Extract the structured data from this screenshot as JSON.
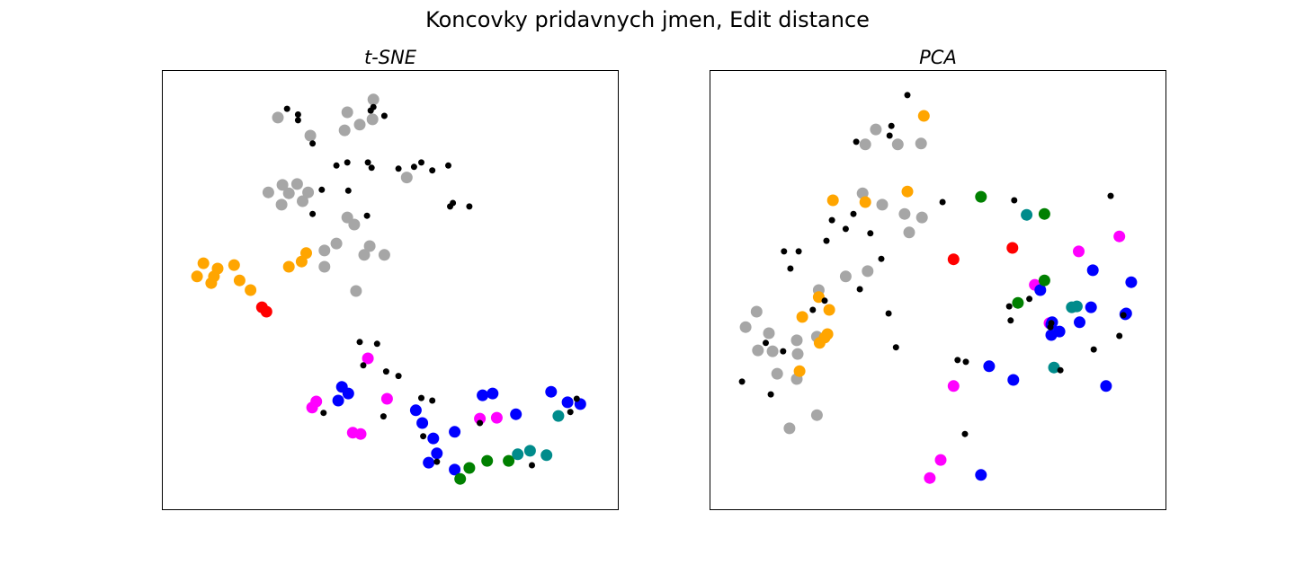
{
  "figure_title": "Koncovky pridavnych jmen, Edit distance",
  "colors": {
    "black": "#000000",
    "gray": "#a6a6a6",
    "orange": "#ffa500",
    "red": "#ff0000",
    "magenta": "#ff00ff",
    "blue": "#0000ff",
    "green": "#008000",
    "teal": "#008b8b"
  },
  "chart_data": [
    {
      "type": "scatter",
      "title": "t-SNE",
      "xlabel": "",
      "ylabel": "",
      "axes_ticks": "none",
      "grid": false,
      "legend": "none",
      "xlim": [
        0,
        100
      ],
      "ylim": [
        0,
        100
      ],
      "series": [
        {
          "color": "black",
          "marker_size": "small",
          "points": [
            [
              27.4,
              91.2
            ],
            [
              29.8,
              89.9
            ],
            [
              29.8,
              88.6
            ],
            [
              33.0,
              83.3
            ],
            [
              38.2,
              78.3
            ],
            [
              40.6,
              79.0
            ],
            [
              40.8,
              72.6
            ],
            [
              45.1,
              79.0
            ],
            [
              45.9,
              77.8
            ],
            [
              46.3,
              91.6
            ],
            [
              45.7,
              90.8
            ],
            [
              48.7,
              89.6
            ],
            [
              51.8,
              77.6
            ],
            [
              55.2,
              78.0
            ],
            [
              56.8,
              79.0
            ],
            [
              59.2,
              77.2
            ],
            [
              62.7,
              78.3
            ],
            [
              35.0,
              72.8
            ],
            [
              33.0,
              67.3
            ],
            [
              44.9,
              66.9
            ],
            [
              63.7,
              69.8
            ],
            [
              63.1,
              69.0
            ],
            [
              67.3,
              69.0
            ],
            [
              43.3,
              38.2
            ],
            [
              47.1,
              37.8
            ],
            [
              44.1,
              32.9
            ],
            [
              49.1,
              31.5
            ],
            [
              51.8,
              30.5
            ],
            [
              56.8,
              25.5
            ],
            [
              59.2,
              24.9
            ],
            [
              35.4,
              22.1
            ],
            [
              48.5,
              21.3
            ],
            [
              57.2,
              16.8
            ],
            [
              69.6,
              19.8
            ],
            [
              60.2,
              11.0
            ],
            [
              81.0,
              10.2
            ],
            [
              90.8,
              25.3
            ],
            [
              89.4,
              22.3
            ]
          ]
        },
        {
          "color": "gray",
          "marker_size": "large",
          "points": [
            [
              46.3,
              93.3
            ],
            [
              40.6,
              90.4
            ],
            [
              46.1,
              88.8
            ],
            [
              25.4,
              89.2
            ],
            [
              43.3,
              87.6
            ],
            [
              40.0,
              86.3
            ],
            [
              32.5,
              85.1
            ],
            [
              53.6,
              75.6
            ],
            [
              23.3,
              72.2
            ],
            [
              26.4,
              73.9
            ],
            [
              27.8,
              72.0
            ],
            [
              29.6,
              74.1
            ],
            [
              32.0,
              72.2
            ],
            [
              26.2,
              69.4
            ],
            [
              30.8,
              70.2
            ],
            [
              40.6,
              66.5
            ],
            [
              42.1,
              64.9
            ],
            [
              38.2,
              60.6
            ],
            [
              35.6,
              59.0
            ],
            [
              45.5,
              60.0
            ],
            [
              44.3,
              58.0
            ],
            [
              48.7,
              58.0
            ],
            [
              35.6,
              55.3
            ],
            [
              42.5,
              49.8
            ]
          ]
        },
        {
          "color": "orange",
          "marker_size": "large",
          "points": [
            [
              9.1,
              56.1
            ],
            [
              12.2,
              54.9
            ],
            [
              7.7,
              53.1
            ],
            [
              11.4,
              53.1
            ],
            [
              15.8,
              55.7
            ],
            [
              10.8,
              51.6
            ],
            [
              17.0,
              52.2
            ],
            [
              19.4,
              50.0
            ],
            [
              31.6,
              58.4
            ],
            [
              30.6,
              56.5
            ],
            [
              27.8,
              55.3
            ]
          ]
        },
        {
          "color": "red",
          "marker_size": "large",
          "points": [
            [
              21.9,
              46.1
            ],
            [
              22.9,
              45.1
            ]
          ]
        },
        {
          "color": "magenta",
          "marker_size": "large",
          "points": [
            [
              45.1,
              34.5
            ],
            [
              33.8,
              24.7
            ],
            [
              32.9,
              23.3
            ],
            [
              49.3,
              25.3
            ],
            [
              41.8,
              17.6
            ],
            [
              43.5,
              17.3
            ],
            [
              69.6,
              20.8
            ],
            [
              73.3,
              21.0
            ]
          ]
        },
        {
          "color": "blue",
          "marker_size": "large",
          "points": [
            [
              39.4,
              28.0
            ],
            [
              40.8,
              26.5
            ],
            [
              38.6,
              24.9
            ],
            [
              70.2,
              26.1
            ],
            [
              72.4,
              26.5
            ],
            [
              55.6,
              22.7
            ],
            [
              57.0,
              19.8
            ],
            [
              59.4,
              16.3
            ],
            [
              64.1,
              17.8
            ],
            [
              60.2,
              12.9
            ],
            [
              58.4,
              10.8
            ],
            [
              77.5,
              21.8
            ],
            [
              85.2,
              26.9
            ],
            [
              88.8,
              24.5
            ],
            [
              91.6,
              24.1
            ],
            [
              64.1,
              9.2
            ]
          ]
        },
        {
          "color": "green",
          "marker_size": "large",
          "points": [
            [
              71.2,
              11.2
            ],
            [
              75.9,
              11.2
            ],
            [
              67.3,
              9.6
            ],
            [
              65.3,
              7.1
            ]
          ]
        },
        {
          "color": "teal",
          "marker_size": "large",
          "points": [
            [
              86.8,
              21.4
            ],
            [
              77.9,
              12.7
            ],
            [
              80.6,
              13.5
            ],
            [
              84.2,
              12.5
            ]
          ]
        }
      ]
    },
    {
      "type": "scatter",
      "title": "PCA",
      "xlabel": "",
      "ylabel": "",
      "axes_ticks": "none",
      "grid": false,
      "legend": "none",
      "xlim": [
        0,
        100
      ],
      "ylim": [
        0,
        100
      ],
      "series": [
        {
          "color": "black",
          "marker_size": "small",
          "points": [
            [
              43.3,
              94.3
            ],
            [
              39.8,
              87.3
            ],
            [
              39.4,
              85.1
            ],
            [
              32.1,
              83.7
            ],
            [
              51.0,
              70.0
            ],
            [
              66.7,
              70.4
            ],
            [
              87.8,
              71.4
            ],
            [
              31.5,
              67.3
            ],
            [
              26.8,
              65.9
            ],
            [
              29.8,
              63.9
            ],
            [
              35.2,
              62.9
            ],
            [
              25.6,
              61.2
            ],
            [
              16.3,
              58.8
            ],
            [
              19.5,
              58.8
            ],
            [
              17.7,
              54.9
            ],
            [
              37.6,
              57.1
            ],
            [
              32.9,
              50.2
            ],
            [
              25.2,
              47.6
            ],
            [
              22.6,
              45.5
            ],
            [
              65.6,
              46.3
            ],
            [
              70.0,
              48.0
            ],
            [
              65.9,
              43.1
            ],
            [
              39.2,
              44.7
            ],
            [
              74.6,
              41.6
            ],
            [
              74.8,
              42.5
            ],
            [
              90.6,
              44.3
            ],
            [
              12.3,
              38.0
            ],
            [
              16.1,
              36.1
            ],
            [
              40.8,
              37.0
            ],
            [
              84.1,
              36.5
            ],
            [
              54.3,
              34.1
            ],
            [
              56.1,
              33.7
            ],
            [
              76.8,
              31.8
            ],
            [
              7.1,
              29.2
            ],
            [
              13.4,
              26.3
            ],
            [
              55.9,
              17.3
            ],
            [
              89.7,
              39.6
            ]
          ]
        },
        {
          "color": "gray",
          "marker_size": "large",
          "points": [
            [
              36.4,
              86.5
            ],
            [
              34.1,
              83.1
            ],
            [
              41.2,
              83.1
            ],
            [
              46.3,
              83.3
            ],
            [
              33.5,
              72.0
            ],
            [
              37.8,
              69.4
            ],
            [
              42.7,
              67.3
            ],
            [
              46.5,
              66.5
            ],
            [
              43.7,
              63.1
            ],
            [
              34.6,
              54.3
            ],
            [
              29.8,
              53.1
            ],
            [
              23.9,
              50.0
            ],
            [
              10.3,
              45.1
            ],
            [
              7.9,
              41.6
            ],
            [
              13.0,
              40.2
            ],
            [
              19.1,
              38.6
            ],
            [
              23.5,
              39.4
            ],
            [
              10.6,
              36.3
            ],
            [
              13.8,
              36.1
            ],
            [
              19.3,
              35.5
            ],
            [
              14.8,
              31.0
            ],
            [
              19.1,
              29.8
            ],
            [
              17.5,
              18.6
            ],
            [
              23.5,
              21.6
            ]
          ]
        },
        {
          "color": "orange",
          "marker_size": "large",
          "points": [
            [
              46.9,
              89.6
            ],
            [
              27.0,
              70.4
            ],
            [
              34.1,
              70.0
            ],
            [
              43.3,
              72.4
            ],
            [
              23.9,
              48.4
            ],
            [
              26.2,
              45.5
            ],
            [
              20.3,
              43.9
            ],
            [
              25.8,
              40.0
            ],
            [
              25.2,
              39.2
            ],
            [
              24.1,
              38.0
            ],
            [
              19.7,
              31.6
            ]
          ]
        },
        {
          "color": "red",
          "marker_size": "large",
          "points": [
            [
              66.3,
              59.6
            ],
            [
              53.4,
              57.0
            ]
          ]
        },
        {
          "color": "magenta",
          "marker_size": "large",
          "points": [
            [
              89.7,
              62.2
            ],
            [
              80.8,
              58.8
            ],
            [
              71.2,
              51.2
            ],
            [
              74.4,
              42.5
            ],
            [
              53.4,
              28.2
            ],
            [
              50.6,
              11.4
            ],
            [
              48.2,
              7.3
            ]
          ]
        },
        {
          "color": "blue",
          "marker_size": "large",
          "points": [
            [
              83.9,
              54.5
            ],
            [
              92.3,
              51.8
            ],
            [
              72.4,
              50.0
            ],
            [
              83.5,
              46.1
            ],
            [
              91.2,
              44.7
            ],
            [
              91.0,
              44.5
            ],
            [
              81.0,
              42.7
            ],
            [
              75.0,
              42.7
            ],
            [
              74.8,
              42.2
            ],
            [
              76.6,
              40.6
            ],
            [
              74.8,
              39.8
            ],
            [
              61.2,
              32.7
            ],
            [
              66.5,
              29.6
            ],
            [
              86.8,
              28.2
            ],
            [
              59.4,
              8.0
            ]
          ]
        },
        {
          "color": "green",
          "marker_size": "large",
          "points": [
            [
              59.4,
              71.2
            ],
            [
              73.3,
              67.3
            ],
            [
              73.3,
              52.2
            ],
            [
              67.5,
              47.1
            ]
          ]
        },
        {
          "color": "teal",
          "marker_size": "large",
          "points": [
            [
              69.4,
              67.1
            ],
            [
              79.3,
              46.1
            ],
            [
              80.4,
              46.3
            ],
            [
              75.4,
              32.4
            ]
          ]
        }
      ]
    }
  ]
}
